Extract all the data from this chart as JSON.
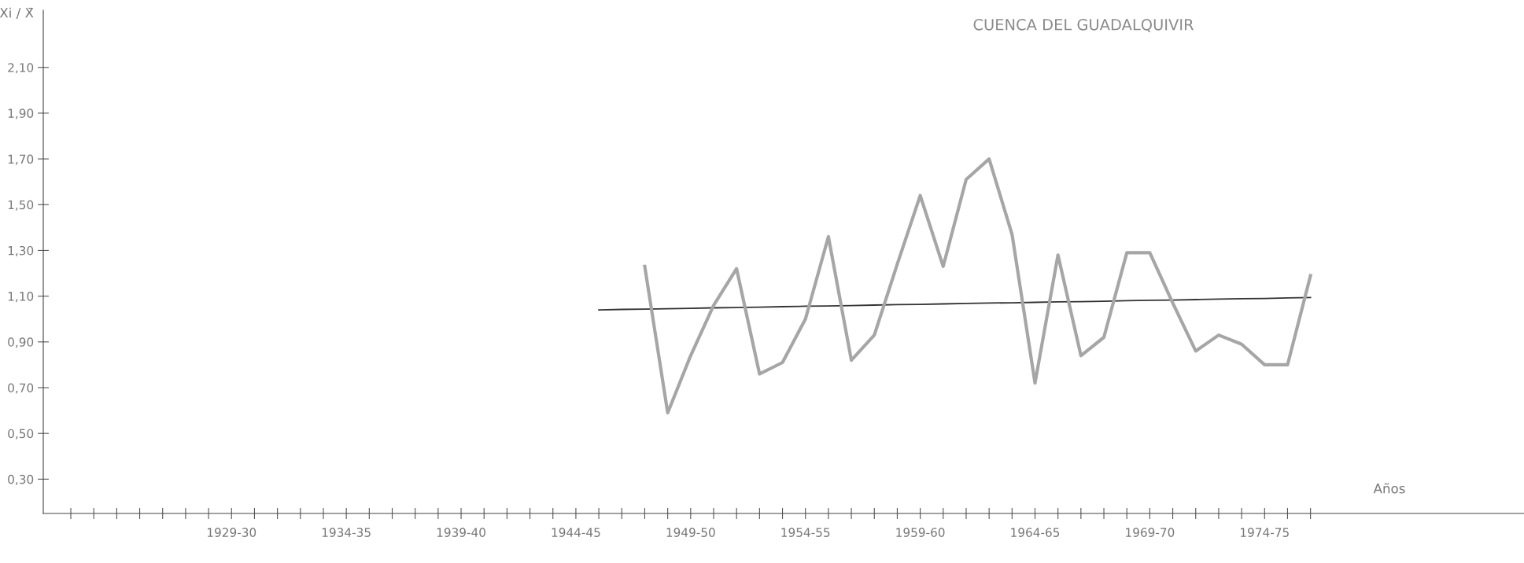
{
  "chart_data": {
    "type": "line",
    "title": "CUENCA DEL GUADALQUIVIR",
    "xlabel": "Años",
    "ylabel": "Xi / X̄",
    "categories": [
      null,
      null,
      null,
      null,
      null,
      null,
      null,
      "1929-30",
      null,
      null,
      null,
      null,
      "1934-35",
      null,
      null,
      null,
      null,
      "1939-40",
      null,
      null,
      null,
      null,
      "1944-45",
      null,
      null,
      null,
      null,
      "1949-50",
      null,
      null,
      null,
      null,
      "1954-55",
      null,
      null,
      null,
      null,
      "1959-60",
      null,
      null,
      null,
      null,
      "1964-65",
      null,
      null,
      null,
      null,
      "1969-70",
      null,
      null,
      null,
      null,
      "1974-75",
      null,
      null
    ],
    "series": [
      {
        "color": "#a6a6a6",
        "values": [
          null,
          null,
          null,
          null,
          null,
          null,
          null,
          null,
          null,
          null,
          null,
          null,
          null,
          null,
          null,
          null,
          null,
          null,
          null,
          null,
          null,
          null,
          null,
          null,
          null,
          1.23,
          0.59,
          0.84,
          1.06,
          1.22,
          0.76,
          0.81,
          1.0,
          1.36,
          0.82,
          0.93,
          1.24,
          1.54,
          1.23,
          1.61,
          1.7,
          1.37,
          0.72,
          1.28,
          0.84,
          0.92,
          1.29,
          1.29,
          1.07,
          0.86,
          0.93,
          0.89,
          0.8,
          0.8,
          1.19
        ]
      },
      {
        "color": "#333333",
        "values": [
          null,
          null,
          null,
          null,
          null,
          null,
          null,
          null,
          null,
          null,
          null,
          null,
          null,
          null,
          null,
          null,
          null,
          null,
          null,
          null,
          null,
          null,
          null,
          1.04,
          1.042,
          1.043,
          1.045,
          1.047,
          1.049,
          1.05,
          1.052,
          1.054,
          1.056,
          1.057,
          1.059,
          1.061,
          1.063,
          1.064,
          1.066,
          1.068,
          1.07,
          1.071,
          1.073,
          1.075,
          1.076,
          1.078,
          1.08,
          1.082,
          1.083,
          1.085,
          1.087,
          1.089,
          1.09,
          1.092,
          1.094
        ]
      }
    ],
    "ylim": [
      0.15,
      2.35
    ],
    "yticks": [
      {
        "value": 0.3,
        "label": "0,30"
      },
      {
        "value": 0.5,
        "label": "0,50"
      },
      {
        "value": 0.7,
        "label": "0,70"
      },
      {
        "value": 0.9,
        "label": "0,90"
      },
      {
        "value": 1.1,
        "label": "1,10"
      },
      {
        "value": 1.3,
        "label": "1,30"
      },
      {
        "value": 1.5,
        "label": "1,50"
      },
      {
        "value": 1.7,
        "label": "1,70"
      },
      {
        "value": 1.9,
        "label": "1,90"
      },
      {
        "value": 2.1,
        "label": "2,10"
      }
    ],
    "grid": false,
    "legend": false,
    "marker": "none",
    "line_style": "solid"
  }
}
